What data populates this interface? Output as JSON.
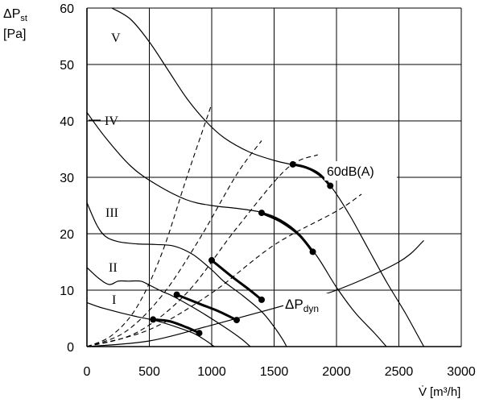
{
  "chart_data": {
    "type": "line",
    "ylabel": {
      "main": "ΔP",
      "sub": "st",
      "unit": "[Pa]"
    },
    "xlabel": {
      "main": "V̇",
      "unit": "[m³/h]"
    },
    "xlim": [
      0,
      3000
    ],
    "ylim": [
      0,
      60
    ],
    "x_ticks": [
      0,
      500,
      1000,
      1500,
      2000,
      2500,
      3000
    ],
    "y_ticks": [
      0,
      10,
      20,
      30,
      40,
      50,
      60
    ],
    "grid": true,
    "series": [
      {
        "name": "I",
        "style": "solid",
        "points": [
          [
            0,
            7.8
          ],
          [
            100,
            7.0
          ],
          [
            250,
            6.1
          ],
          [
            400,
            5.3
          ],
          [
            550,
            4.6
          ],
          [
            700,
            3.6
          ],
          [
            850,
            2.4
          ],
          [
            950,
            1.1
          ],
          [
            1020,
            0
          ]
        ]
      },
      {
        "name": "II",
        "style": "solid",
        "points": [
          [
            0,
            14.0
          ],
          [
            100,
            12.0
          ],
          [
            180,
            11.0
          ],
          [
            250,
            11.6
          ],
          [
            330,
            11.6
          ],
          [
            430,
            11.6
          ],
          [
            500,
            10.9
          ],
          [
            600,
            9.8
          ],
          [
            700,
            8.8
          ],
          [
            900,
            6.3
          ],
          [
            1100,
            3.5
          ],
          [
            1230,
            1.5
          ],
          [
            1310,
            0
          ]
        ]
      },
      {
        "name": "III",
        "style": "solid",
        "points": [
          [
            0,
            25.5
          ],
          [
            80,
            21.5
          ],
          [
            150,
            19.5
          ],
          [
            250,
            18.6
          ],
          [
            400,
            18.2
          ],
          [
            550,
            18.1
          ],
          [
            700,
            17.8
          ],
          [
            850,
            16.3
          ],
          [
            1000,
            13.6
          ],
          [
            1100,
            11.5
          ],
          [
            1250,
            9.0
          ],
          [
            1400,
            6.2
          ],
          [
            1500,
            3.5
          ],
          [
            1570,
            1.2
          ],
          [
            1600,
            0
          ]
        ]
      },
      {
        "name": "IV",
        "style": "solid",
        "points": [
          [
            0,
            41.5
          ],
          [
            150,
            37.0
          ],
          [
            350,
            32.0
          ],
          [
            550,
            28.8
          ],
          [
            800,
            26.0
          ],
          [
            1000,
            25.0
          ],
          [
            1200,
            24.5
          ],
          [
            1400,
            23.8
          ],
          [
            1550,
            22.5
          ],
          [
            1700,
            20.0
          ],
          [
            1850,
            15.8
          ],
          [
            2000,
            10.5
          ],
          [
            2150,
            6.0
          ],
          [
            2300,
            2.5
          ],
          [
            2400,
            0
          ]
        ]
      },
      {
        "name": "V",
        "style": "solid",
        "points": [
          [
            200,
            60.0
          ],
          [
            350,
            58.0
          ],
          [
            500,
            54.0
          ],
          [
            650,
            49.0
          ],
          [
            800,
            44.0
          ],
          [
            950,
            40.0
          ],
          [
            1100,
            37.0
          ],
          [
            1300,
            34.5
          ],
          [
            1500,
            33.0
          ],
          [
            1650,
            32.2
          ],
          [
            1800,
            31.2
          ],
          [
            1950,
            28.5
          ],
          [
            2100,
            23.5
          ],
          [
            2250,
            17.5
          ],
          [
            2400,
            11.5
          ],
          [
            2550,
            6.0
          ],
          [
            2650,
            2.0
          ],
          [
            2700,
            0
          ]
        ]
      },
      {
        "name": "ΔP dyn",
        "style": "solid",
        "points": [
          [
            0,
            0
          ],
          [
            500,
            1.0
          ],
          [
            1000,
            3.8
          ],
          [
            1500,
            6.8
          ],
          [
            2000,
            10.0
          ],
          [
            2500,
            15.0
          ],
          [
            2700,
            18.8
          ]
        ]
      }
    ],
    "system_curves": [
      {
        "style": "dashed",
        "points": [
          [
            0,
            0
          ],
          [
            200,
            2
          ],
          [
            400,
            7
          ],
          [
            600,
            16.5
          ],
          [
            800,
            30
          ],
          [
            1000,
            43
          ]
        ]
      },
      {
        "style": "dashed",
        "points": [
          [
            0,
            0
          ],
          [
            300,
            2.5
          ],
          [
            600,
            9
          ],
          [
            900,
            19
          ],
          [
            1200,
            30.5
          ],
          [
            1400,
            36.5
          ]
        ]
      },
      {
        "style": "dashed",
        "points": [
          [
            0,
            0
          ],
          [
            400,
            2.5
          ],
          [
            800,
            9.5
          ],
          [
            1200,
            21
          ],
          [
            1600,
            31.5
          ],
          [
            1850,
            34
          ]
        ]
      },
      {
        "style": "dashed",
        "points": [
          [
            0,
            0
          ],
          [
            500,
            3
          ],
          [
            1000,
            9.5
          ],
          [
            1500,
            18
          ],
          [
            2000,
            24
          ],
          [
            2200,
            27
          ]
        ]
      }
    ],
    "noise_curve": {
      "label": "60dB(A)",
      "style": "bold",
      "segments": [
        [
          [
            530,
            4.8
          ],
          [
            660,
            4.5
          ],
          [
            800,
            3.4
          ],
          [
            900,
            2.4
          ]
        ],
        [
          [
            720,
            9.2
          ],
          [
            900,
            7.6
          ],
          [
            1050,
            6.3
          ],
          [
            1200,
            4.7
          ]
        ],
        [
          [
            1000,
            15.3
          ],
          [
            1150,
            12.6
          ],
          [
            1300,
            10.1
          ],
          [
            1400,
            8.3
          ]
        ],
        [
          [
            1400,
            23.7
          ],
          [
            1550,
            22.2
          ],
          [
            1700,
            19.8
          ],
          [
            1810,
            16.8
          ]
        ],
        [
          [
            1650,
            32.3
          ],
          [
            1750,
            31.8
          ],
          [
            1860,
            30.6
          ],
          [
            1950,
            28.5
          ]
        ]
      ]
    }
  }
}
